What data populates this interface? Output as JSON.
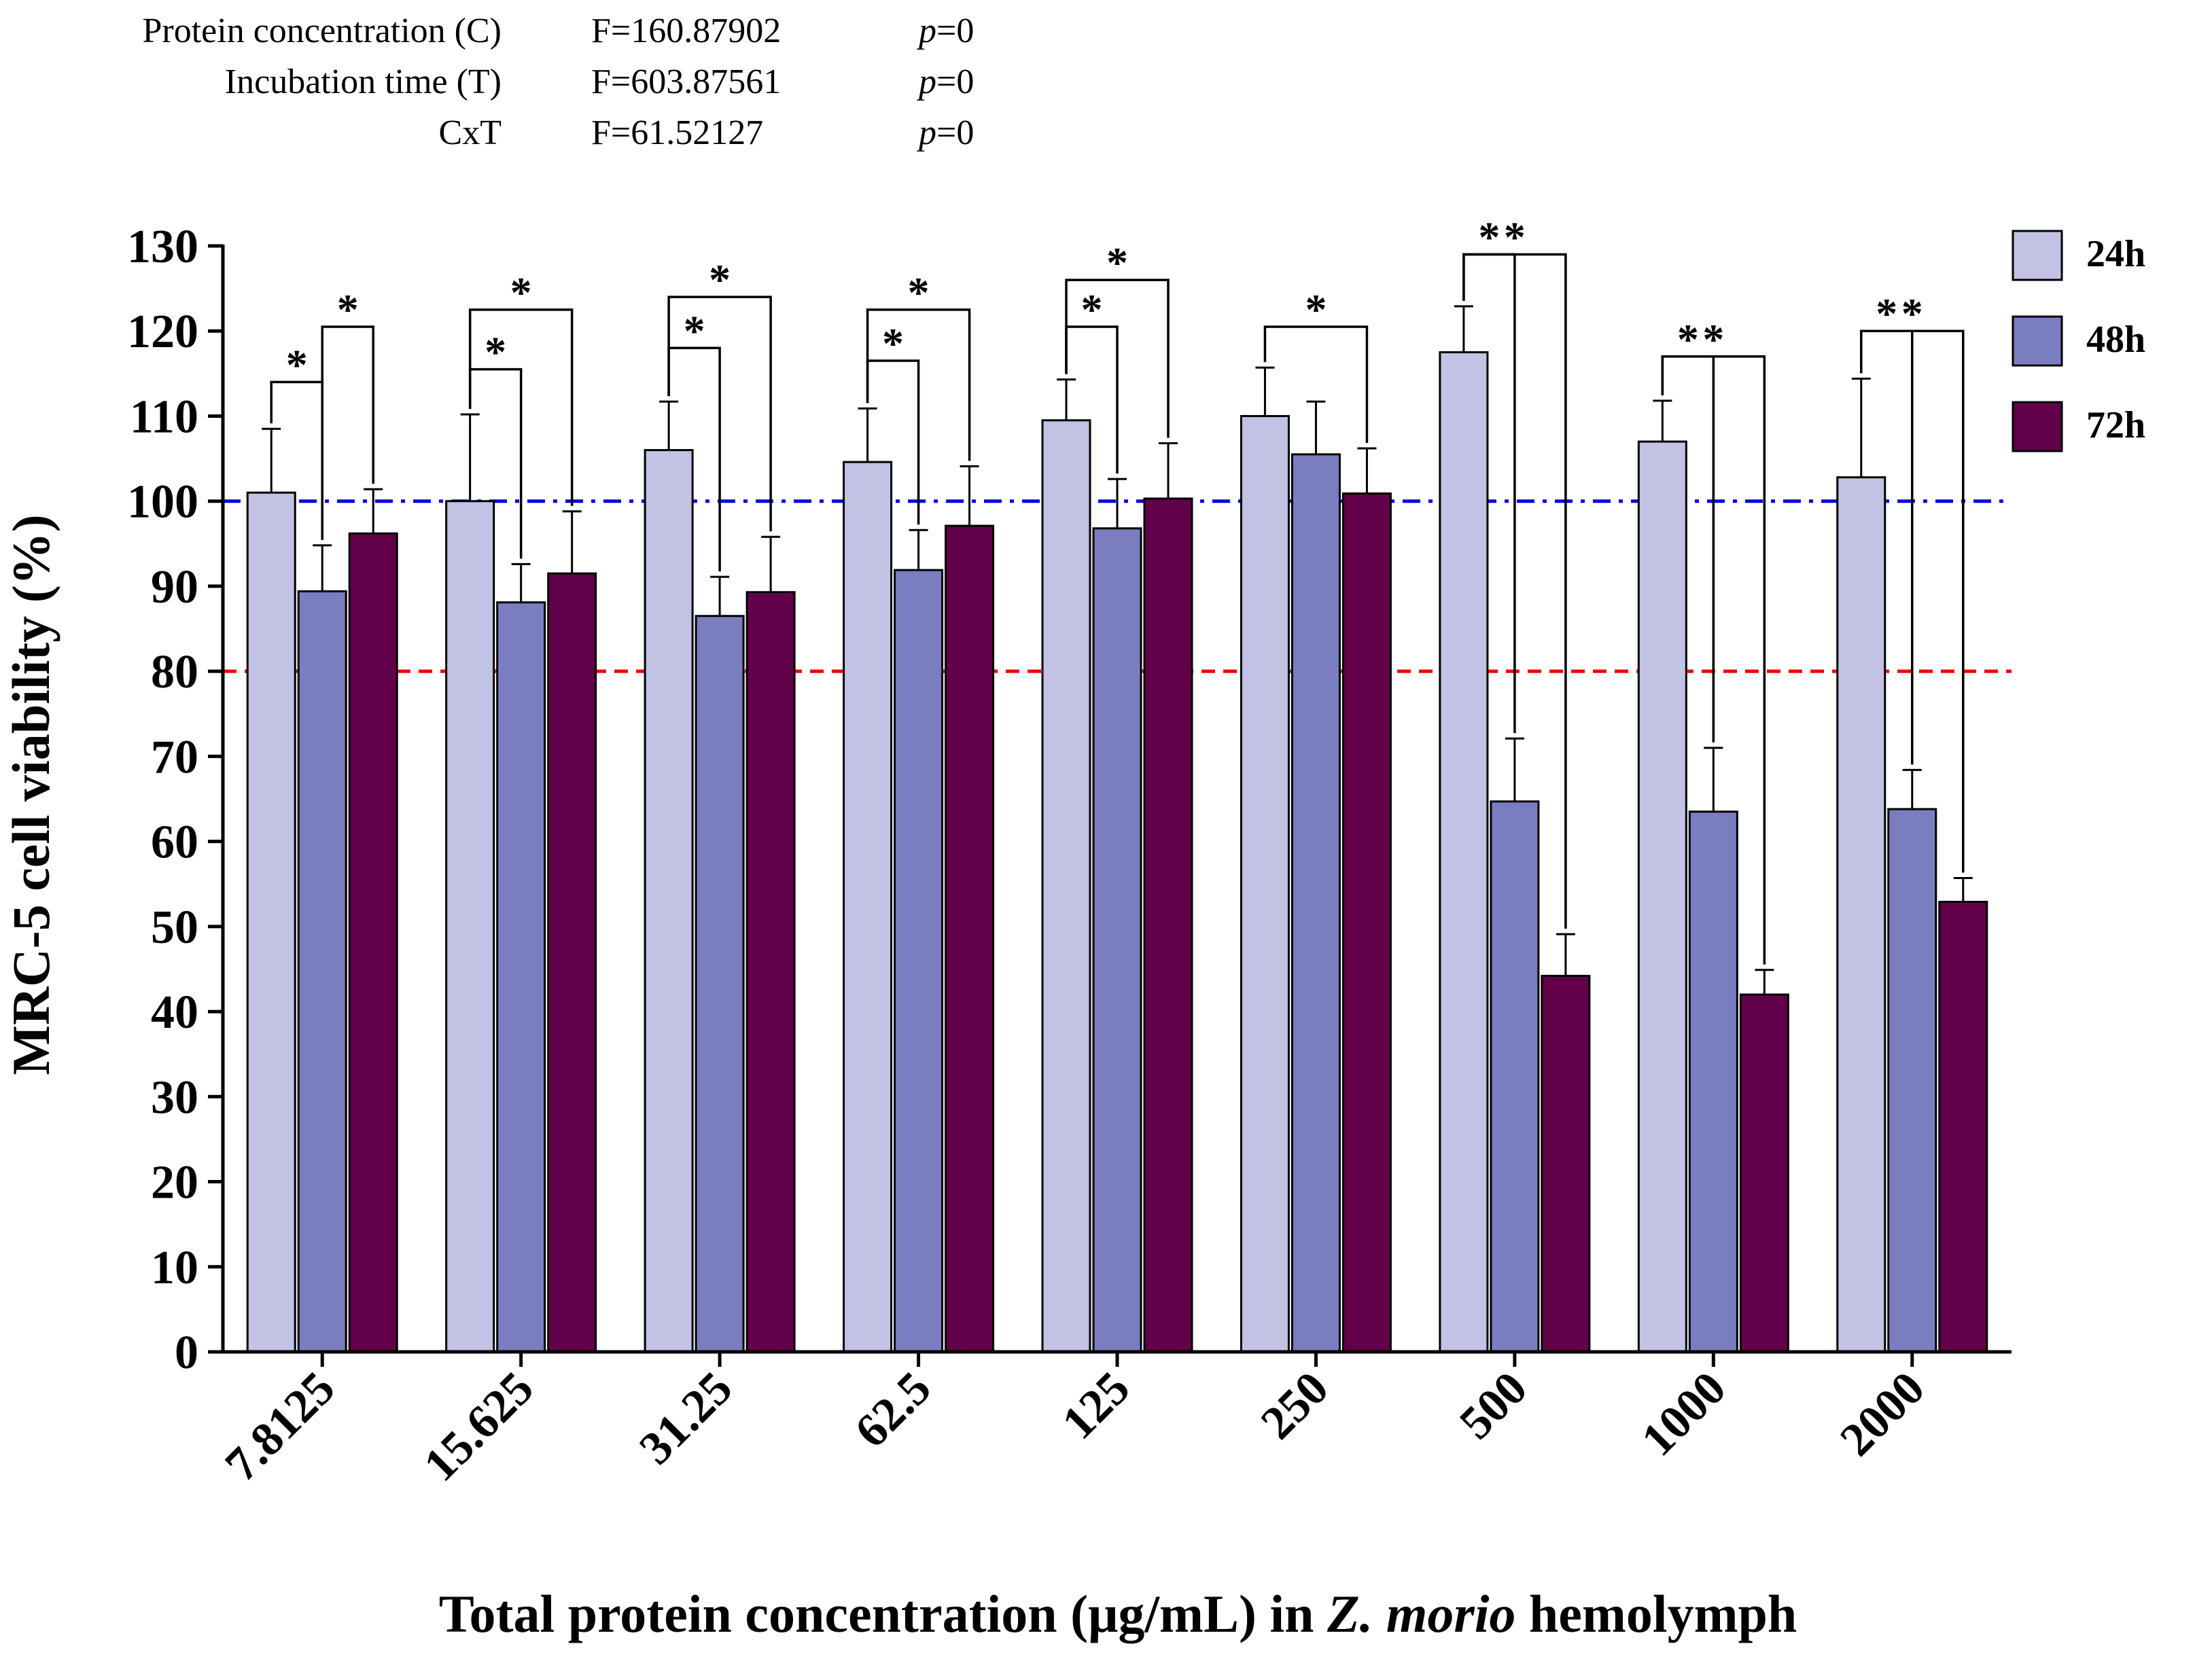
{
  "stats": [
    {
      "label": "Protein concentration (C)",
      "f": "F=160.87902",
      "p_letter": "p",
      "p_value": "=0"
    },
    {
      "label": "Incubation time (T)",
      "f": "F=603.87561",
      "p_letter": "p",
      "p_value": "=0"
    },
    {
      "label": "CxT",
      "f": "F=61.52127",
      "p_letter": "p",
      "p_value": "=0"
    }
  ],
  "chart_data": {
    "type": "bar",
    "categories": [
      "7.8125",
      "15.625",
      "31.25",
      "62.5",
      "125",
      "250",
      "500",
      "1000",
      "2000"
    ],
    "series": [
      {
        "name": "24h",
        "color": "#c2c2e4",
        "values": [
          101,
          100,
          106,
          104.6,
          109.5,
          110,
          117.5,
          107,
          102.8
        ],
        "errors": [
          7.5,
          10.2,
          5.7,
          6.3,
          4.8,
          5.7,
          5.4,
          4.8,
          11.6
        ]
      },
      {
        "name": "48h",
        "color": "#7b7dc1",
        "values": [
          89.4,
          88.1,
          86.5,
          91.9,
          96.8,
          105.5,
          64.7,
          63.5,
          63.8
        ],
        "errors": [
          5.4,
          4.5,
          4.6,
          4.7,
          5.8,
          6.2,
          7.4,
          7.5,
          4.6
        ]
      },
      {
        "name": "72h",
        "color": "#620049",
        "values": [
          96.2,
          91.5,
          89.3,
          97.1,
          100.3,
          100.9,
          44.2,
          42,
          52.9
        ],
        "errors": [
          5.2,
          7.3,
          6.5,
          7,
          6.5,
          5.3,
          4.9,
          2.9,
          2.8
        ]
      }
    ],
    "ylabel": "MRC-5 cell viability (%)",
    "xlabel_parts": [
      "Total protein concentration (μg/mL) in ",
      "Z. morio",
      " hemolymph"
    ],
    "ylim": [
      0,
      130
    ],
    "yticks": [
      0,
      10,
      20,
      30,
      40,
      50,
      60,
      70,
      80,
      90,
      100,
      110,
      120,
      130
    ],
    "reference_lines": [
      {
        "value": 100,
        "color": "#0000dd",
        "style": "dash-dot"
      },
      {
        "value": 80,
        "color": "#ee0000",
        "style": "dashed"
      }
    ],
    "significance": [
      {
        "category": 0,
        "from_series": 0,
        "to_series": 1,
        "level": 114,
        "label": "*"
      },
      {
        "category": 0,
        "from_series": 1,
        "to_series": 2,
        "level": 120.5,
        "label": "*"
      },
      {
        "category": 1,
        "from_series": 0,
        "to_series": 1,
        "level": 115.5,
        "label": "*"
      },
      {
        "category": 1,
        "from_series": 0,
        "to_series": 2,
        "level": 122.5,
        "label": "*"
      },
      {
        "category": 2,
        "from_series": 0,
        "to_series": 1,
        "level": 118,
        "label": "*"
      },
      {
        "category": 2,
        "from_series": 0,
        "to_series": 2,
        "level": 124,
        "label": "*"
      },
      {
        "category": 3,
        "from_series": 0,
        "to_series": 1,
        "level": 116.5,
        "label": "*"
      },
      {
        "category": 3,
        "from_series": 0,
        "to_series": 2,
        "level": 122.5,
        "label": "*"
      },
      {
        "category": 4,
        "from_series": 0,
        "to_series": 1,
        "level": 120.5,
        "label": "*"
      },
      {
        "category": 4,
        "from_series": 0,
        "to_series": 2,
        "level": 126,
        "label": "*"
      },
      {
        "category": 5,
        "from_series": 0,
        "to_series": 2,
        "level": 120.5,
        "label": "*"
      },
      {
        "category": 6,
        "from_series": 0,
        "to_series": 1,
        "level": 129,
        "label": "*"
      },
      {
        "category": 6,
        "from_series": 0,
        "to_series": 2,
        "level": 129,
        "label": "*"
      },
      {
        "category": 7,
        "from_series": 0,
        "to_series": 1,
        "level": 117,
        "label": "*"
      },
      {
        "category": 7,
        "from_series": 0,
        "to_series": 2,
        "level": 117,
        "label": "*"
      },
      {
        "category": 8,
        "from_series": 0,
        "to_series": 1,
        "level": 120,
        "label": "*"
      },
      {
        "category": 8,
        "from_series": 0,
        "to_series": 2,
        "level": 120,
        "label": "*"
      }
    ],
    "legend": {
      "position": "top-right",
      "entries": [
        "24h",
        "48h",
        "72h"
      ]
    }
  }
}
